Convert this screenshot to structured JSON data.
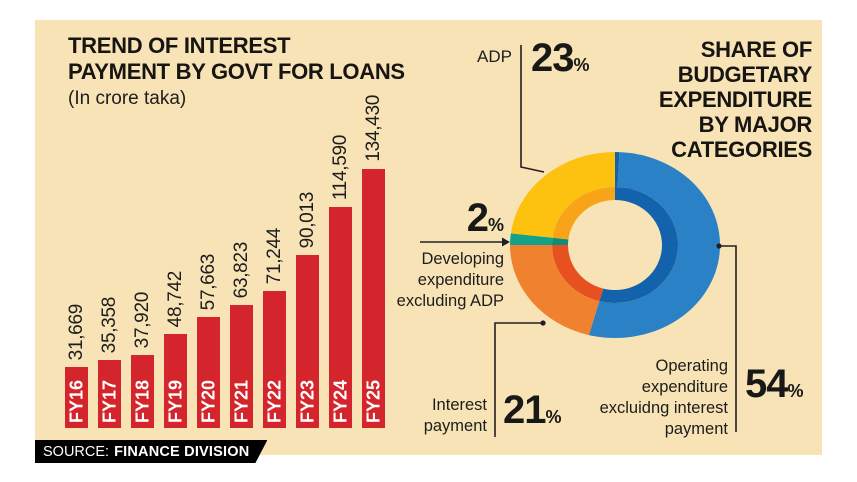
{
  "panel": {
    "background": "#f8e3b7"
  },
  "left_chart": {
    "title_line1": "TREND OF INTEREST",
    "title_line2": "PAYMENT BY GOVT FOR LOANS",
    "subtitle": "(In crore taka)"
  },
  "source": {
    "prefix": "SOURCE:",
    "name": "FINANCE DIVISION"
  },
  "donut_title": {
    "lines": [
      "SHARE OF",
      "BUDGETARY",
      "EXPENDITURE",
      "BY MAJOR",
      "CATEGORIES"
    ]
  },
  "callouts": {
    "adp": {
      "label": "ADP",
      "pct": "23",
      "sign": "%"
    },
    "developing": {
      "pct": "2",
      "sign": "%",
      "lines": [
        "Developing",
        "expenditure",
        "excluding ADP"
      ]
    },
    "interest": {
      "pct": "21",
      "sign": "%",
      "lines": [
        "Interest",
        "payment"
      ]
    },
    "operating": {
      "pct": "54",
      "sign": "%",
      "lines": [
        "Operating",
        "expenditure",
        "excluidng interest",
        "payment"
      ]
    }
  },
  "colors": {
    "bar_red": "#d4252c",
    "line_dark": "#231f20",
    "blue": "#2b81c5",
    "blue_dark": "#1263ab",
    "orange": "#f0812f",
    "orange_dark": "#e6511f",
    "teal": "#12a289",
    "teal_dark": "#0f8d78",
    "yellow": "#fdc20f",
    "yellow_dark": "#f7a419"
  },
  "chart_data": [
    {
      "type": "bar",
      "title": "TREND OF INTEREST PAYMENT BY GOVT FOR LOANS",
      "unit": "In crore taka",
      "categories": [
        "FY16",
        "FY17",
        "FY18",
        "FY19",
        "FY20",
        "FY21",
        "FY22",
        "FY23",
        "FY24",
        "FY25"
      ],
      "values": [
        31669,
        35358,
        37920,
        48742,
        57663,
        63823,
        71244,
        90013,
        114590,
        134430
      ],
      "bar_color": "#d4252c",
      "source": "FINANCE DIVISION"
    },
    {
      "type": "pie",
      "title": "SHARE OF BUDGETARY EXPENDITURE BY MAJOR CATEGORIES",
      "donut": true,
      "slices": [
        {
          "name": "Operating expenditure excluidng interest payment",
          "pct": 54,
          "color": "#2b81c5",
          "dark": "#1263ab"
        },
        {
          "name": "Interest payment",
          "pct": 21,
          "color": "#f0812f",
          "dark": "#e6511f"
        },
        {
          "name": "Developing expenditure excluding ADP",
          "pct": 2,
          "color": "#12a289",
          "dark": "#0f8d78"
        },
        {
          "name": "ADP",
          "pct": 23,
          "color": "#fdc20f",
          "dark": "#f7a419"
        }
      ]
    }
  ]
}
